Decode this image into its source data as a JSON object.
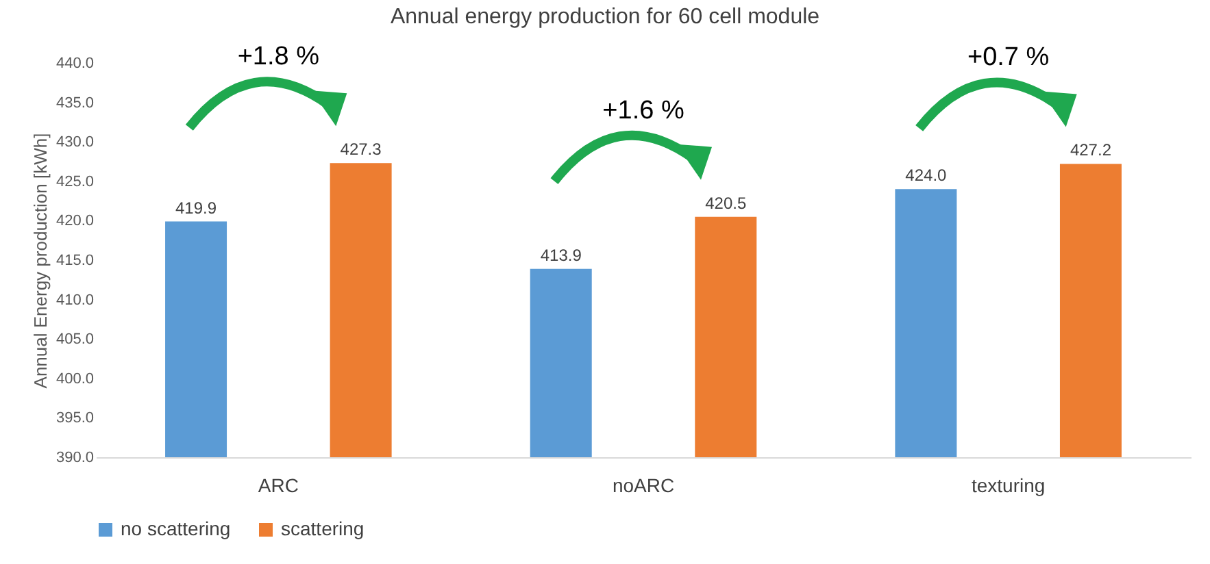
{
  "chart_data": {
    "type": "bar",
    "title": "Annual energy production for 60 cell module",
    "ylabel": "Annual Energy production [kWh]",
    "categories": [
      "ARC",
      "noARC",
      "texturing"
    ],
    "series": [
      {
        "name": "no scattering",
        "color": "#5b9bd5",
        "values": [
          419.9,
          413.9,
          424.0
        ],
        "value_labels": [
          "419.9",
          "413.9",
          "424.0"
        ]
      },
      {
        "name": "scattering",
        "color": "#ed7d31",
        "values": [
          427.3,
          420.5,
          427.2
        ],
        "value_labels": [
          "427.3",
          "420.5",
          "427.2"
        ]
      }
    ],
    "ylim": [
      390,
      440
    ],
    "yticks": [
      {
        "value": 390,
        "label": "390.0"
      },
      {
        "value": 395,
        "label": "395.0"
      },
      {
        "value": 400,
        "label": "400.0"
      },
      {
        "value": 405,
        "label": "405.0"
      },
      {
        "value": 410,
        "label": "410.0"
      },
      {
        "value": 415,
        "label": "415.0"
      },
      {
        "value": 420,
        "label": "420.0"
      },
      {
        "value": 425,
        "label": "425.0"
      },
      {
        "value": 430,
        "label": "430.0"
      },
      {
        "value": 435,
        "label": "435.0"
      },
      {
        "value": 440,
        "label": "440.0"
      }
    ],
    "legend": "bottom",
    "grid": false,
    "annotations": [
      "+1.8 %",
      "+1.6 %",
      "+0.7 %"
    ]
  }
}
